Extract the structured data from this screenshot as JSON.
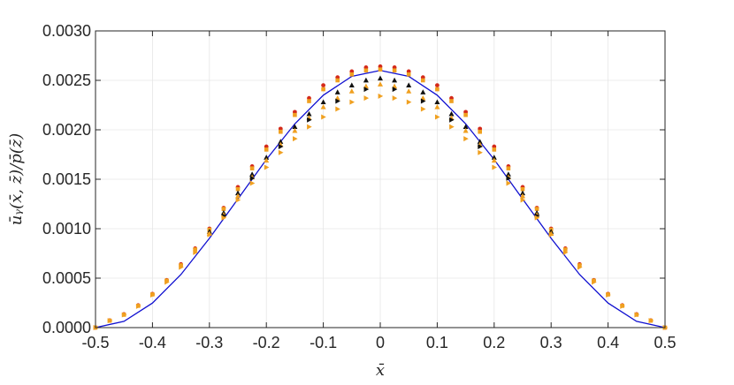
{
  "chart_data": {
    "type": "scatter",
    "title": "",
    "xlabel": "x̄",
    "ylabel": "ūᵧ(x̄, z̄)/p̄(z̄)",
    "xlim": [
      -0.5,
      0.5
    ],
    "ylim": [
      0,
      0.003
    ],
    "x_ticks": [
      "-0.5",
      "-0.4",
      "-0.3",
      "-0.2",
      "-0.1",
      "0",
      "0.1",
      "0.2",
      "0.3",
      "0.4",
      "0.5"
    ],
    "y_ticks": [
      "0.0000",
      "0.0005",
      "0.0010",
      "0.0015",
      "0.0020",
      "0.0025",
      "0.0030"
    ],
    "grid": true,
    "colors": {
      "curve": "#1010d0",
      "red": "#d42a1a",
      "orange": "#f0a020",
      "black": "#111111",
      "grid": "#e6e6e6",
      "axis": "#262626"
    },
    "series": [
      {
        "type": "line",
        "x": [
          -0.5,
          -0.45,
          -0.4,
          -0.35,
          -0.3,
          -0.25,
          -0.2,
          -0.15,
          -0.1,
          -0.05,
          0,
          0.05,
          0.1,
          0.15,
          0.2,
          0.25,
          0.3,
          0.35,
          0.4,
          0.45,
          0.5
        ],
        "y": [
          0,
          6.36e-05,
          0.000248,
          0.000537,
          0.000903,
          0.0013,
          0.0017,
          0.00206,
          0.00235,
          0.00254,
          0.0026,
          0.00254,
          0.00235,
          0.00206,
          0.0017,
          0.0013,
          0.000903,
          0.000537,
          0.000248,
          6.36e-05,
          0
        ]
      },
      {
        "marker": "circle",
        "color": "red",
        "x": [
          -0.5,
          -0.475,
          -0.45,
          -0.425,
          -0.4,
          -0.375,
          -0.35,
          -0.325,
          -0.3,
          -0.275,
          -0.25,
          -0.225,
          -0.2,
          -0.175,
          -0.15,
          -0.125,
          -0.1,
          -0.075,
          -0.05,
          -0.025,
          0,
          0.025,
          0.05,
          0.075,
          0.1,
          0.125,
          0.15,
          0.175,
          0.2,
          0.225,
          0.25,
          0.275,
          0.3,
          0.325,
          0.35,
          0.375,
          0.4,
          0.425,
          0.45,
          0.475,
          0.5
        ],
        "y": [
          0,
          7.2e-05,
          0.000135,
          0.000225,
          0.00034,
          0.00048,
          0.00064,
          0.0008,
          0.001,
          0.00121,
          0.00142,
          0.00163,
          0.00183,
          0.00201,
          0.00218,
          0.00232,
          0.00245,
          0.00253,
          0.00259,
          0.00263,
          0.00264,
          0.00263,
          0.00259,
          0.00253,
          0.00245,
          0.00232,
          0.00218,
          0.00201,
          0.00183,
          0.00163,
          0.00142,
          0.00121,
          0.001,
          0.0008,
          0.00064,
          0.00048,
          0.00034,
          0.000225,
          0.000135,
          7.2e-05,
          0
        ]
      },
      {
        "marker": "square",
        "color": "orange",
        "x": [
          -0.5,
          -0.475,
          -0.45,
          -0.425,
          -0.4,
          -0.375,
          -0.35,
          -0.325,
          -0.3,
          -0.275,
          -0.25,
          -0.225,
          -0.2,
          -0.175,
          -0.15,
          -0.125,
          -0.1,
          -0.075,
          -0.05,
          -0.025,
          0,
          0.025,
          0.05,
          0.075,
          0.1,
          0.125,
          0.15,
          0.175,
          0.2,
          0.225,
          0.25,
          0.275,
          0.3,
          0.325,
          0.35,
          0.375,
          0.4,
          0.425,
          0.45,
          0.475,
          0.5
        ],
        "y": [
          0,
          7e-05,
          0.00013,
          0.00022,
          0.000335,
          0.000475,
          0.00063,
          0.00079,
          0.00099,
          0.0012,
          0.0014,
          0.00161,
          0.0018,
          0.00198,
          0.00215,
          0.00229,
          0.00241,
          0.0025,
          0.00256,
          0.0026,
          0.00261,
          0.0026,
          0.00256,
          0.0025,
          0.00241,
          0.00229,
          0.00215,
          0.00198,
          0.0018,
          0.00161,
          0.0014,
          0.0012,
          0.00099,
          0.00079,
          0.00063,
          0.000475,
          0.000335,
          0.00022,
          0.00013,
          7e-05,
          0
        ]
      },
      {
        "marker": "triangle-up",
        "color": "black",
        "x": [
          -0.3,
          -0.275,
          -0.25,
          -0.225,
          -0.2,
          -0.175,
          -0.15,
          -0.125,
          -0.1,
          -0.075,
          -0.05,
          -0.025,
          0,
          0.025,
          0.05,
          0.075,
          0.1,
          0.125,
          0.15,
          0.175,
          0.2,
          0.225,
          0.25,
          0.275,
          0.3
        ],
        "y": [
          0.00097,
          0.00116,
          0.00136,
          0.00155,
          0.00172,
          0.00188,
          0.00203,
          0.00216,
          0.00228,
          0.00238,
          0.00245,
          0.0025,
          0.00252,
          0.0025,
          0.00245,
          0.00238,
          0.00228,
          0.00216,
          0.00203,
          0.00188,
          0.00172,
          0.00155,
          0.00136,
          0.00116,
          0.00097
        ]
      },
      {
        "marker": "triangle-up",
        "color": "orange",
        "x": [
          -0.3,
          -0.275,
          -0.25,
          -0.225,
          -0.2,
          -0.175,
          -0.15,
          -0.125,
          -0.1,
          -0.075,
          -0.05,
          -0.025,
          0,
          0.025,
          0.05,
          0.075,
          0.1,
          0.125,
          0.15,
          0.175,
          0.2,
          0.225,
          0.25,
          0.275,
          0.3
        ],
        "y": [
          0.00095,
          0.00114,
          0.00133,
          0.00152,
          0.00169,
          0.00185,
          0.00199,
          0.00212,
          0.00223,
          0.00232,
          0.00239,
          0.00244,
          0.00246,
          0.00244,
          0.00239,
          0.00232,
          0.00223,
          0.00212,
          0.00199,
          0.00185,
          0.00169,
          0.00152,
          0.00133,
          0.00114,
          0.00095
        ]
      },
      {
        "marker": "triangle-right",
        "color": "black",
        "x": [
          -0.275,
          -0.225,
          -0.175,
          -0.125,
          -0.075,
          -0.025,
          0.025,
          0.075,
          0.125,
          0.175,
          0.225,
          0.275
        ],
        "y": [
          0.00113,
          0.00151,
          0.00183,
          0.0021,
          0.00229,
          0.00241,
          0.00241,
          0.00229,
          0.0021,
          0.00183,
          0.00151,
          0.00113
        ]
      },
      {
        "marker": "triangle-right",
        "color": "orange",
        "x": [
          -0.5,
          -0.475,
          -0.45,
          -0.425,
          -0.4,
          -0.375,
          -0.35,
          -0.325,
          -0.3,
          -0.275,
          -0.25,
          -0.225,
          -0.2,
          -0.175,
          -0.15,
          -0.125,
          -0.1,
          -0.075,
          -0.05,
          -0.025,
          0,
          0.025,
          0.05,
          0.075,
          0.1,
          0.125,
          0.15,
          0.175,
          0.2,
          0.225,
          0.25,
          0.275,
          0.3,
          0.325,
          0.35,
          0.375,
          0.4,
          0.425,
          0.45,
          0.475,
          0.5
        ],
        "y": [
          0,
          7e-05,
          0.00013,
          0.000215,
          0.00033,
          0.00046,
          0.00061,
          0.00076,
          0.00094,
          0.00111,
          0.00129,
          0.00146,
          0.00162,
          0.00177,
          0.00191,
          0.00203,
          0.00213,
          0.00221,
          0.00228,
          0.00232,
          0.00234,
          0.00232,
          0.00228,
          0.00221,
          0.00213,
          0.00203,
          0.00191,
          0.00177,
          0.00162,
          0.00146,
          0.00129,
          0.00111,
          0.00094,
          0.00076,
          0.00061,
          0.00046,
          0.00033,
          0.000215,
          0.00013,
          7e-05,
          0
        ]
      }
    ]
  }
}
